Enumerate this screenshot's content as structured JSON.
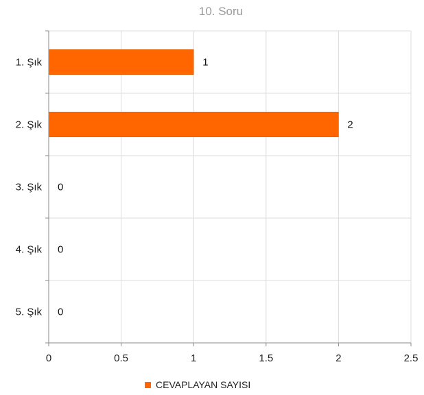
{
  "chart_data": {
    "type": "bar",
    "orientation": "horizontal",
    "title": "10. Soru",
    "categories": [
      "1. Şık",
      "2. Şık",
      "3. Şık",
      "4. Şık",
      "5. Şık"
    ],
    "series": [
      {
        "name": "CEVAPLAYAN SAYISI",
        "values": [
          1,
          2,
          0,
          0,
          0
        ],
        "color": "#ff6600"
      }
    ],
    "xlim": [
      0,
      2.5
    ],
    "xticks": [
      "0",
      "0.5",
      "1",
      "1.5",
      "2",
      "2.5"
    ],
    "xtick_values": [
      0,
      0.5,
      1,
      1.5,
      2,
      2.5
    ],
    "grid": true,
    "legend": "bottom"
  }
}
